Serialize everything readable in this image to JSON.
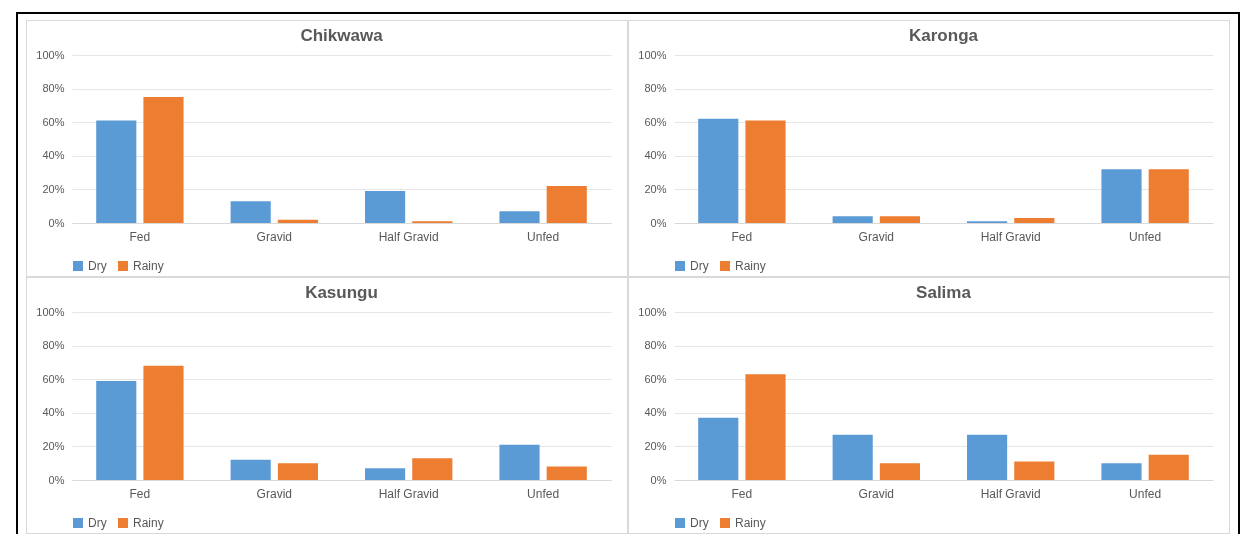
{
  "chart_data": [
    {
      "type": "bar",
      "title": "Chikwawa",
      "categories": [
        "Fed",
        "Gravid",
        "Half Gravid",
        "Unfed"
      ],
      "ylim": [
        0,
        100
      ],
      "yticks": [
        {
          "value": 0,
          "label": "0%"
        },
        {
          "value": 20,
          "label": "20%"
        },
        {
          "value": 40,
          "label": "40%"
        },
        {
          "value": 60,
          "label": "60%"
        },
        {
          "value": 80,
          "label": "80%"
        },
        {
          "value": 100,
          "label": "100%"
        }
      ],
      "grid": "y",
      "legend": "bottom",
      "series": [
        {
          "name": "Dry",
          "color": "#5b9bd5",
          "values": [
            61,
            13,
            19,
            7
          ]
        },
        {
          "name": "Rainy",
          "color": "#ed7d31",
          "values": [
            75,
            2,
            1,
            22
          ]
        }
      ]
    },
    {
      "type": "bar",
      "title": "Karonga",
      "categories": [
        "Fed",
        "Gravid",
        "Half Gravid",
        "Unfed"
      ],
      "ylim": [
        0,
        100
      ],
      "yticks": [
        {
          "value": 0,
          "label": "0%"
        },
        {
          "value": 20,
          "label": "20%"
        },
        {
          "value": 40,
          "label": "40%"
        },
        {
          "value": 60,
          "label": "60%"
        },
        {
          "value": 80,
          "label": "80%"
        },
        {
          "value": 100,
          "label": "100%"
        }
      ],
      "grid": "y",
      "legend": "bottom",
      "series": [
        {
          "name": "Dry",
          "color": "#5b9bd5",
          "values": [
            62,
            4,
            1,
            32
          ]
        },
        {
          "name": "Rainy",
          "color": "#ed7d31",
          "values": [
            61,
            4,
            3,
            32
          ]
        }
      ]
    },
    {
      "type": "bar",
      "title": "Kasungu",
      "categories": [
        "Fed",
        "Gravid",
        "Half Gravid",
        "Unfed"
      ],
      "ylim": [
        0,
        100
      ],
      "yticks": [
        {
          "value": 0,
          "label": "0%"
        },
        {
          "value": 20,
          "label": "20%"
        },
        {
          "value": 40,
          "label": "40%"
        },
        {
          "value": 60,
          "label": "60%"
        },
        {
          "value": 80,
          "label": "80%"
        },
        {
          "value": 100,
          "label": "100%"
        }
      ],
      "grid": "y",
      "legend": "bottom",
      "series": [
        {
          "name": "Dry",
          "color": "#5b9bd5",
          "values": [
            59,
            12,
            7,
            21
          ]
        },
        {
          "name": "Rainy",
          "color": "#ed7d31",
          "values": [
            68,
            10,
            13,
            8
          ]
        }
      ]
    },
    {
      "type": "bar",
      "title": "Salima",
      "categories": [
        "Fed",
        "Gravid",
        "Half Gravid",
        "Unfed"
      ],
      "ylim": [
        0,
        100
      ],
      "yticks": [
        {
          "value": 0,
          "label": "0%"
        },
        {
          "value": 20,
          "label": "20%"
        },
        {
          "value": 40,
          "label": "40%"
        },
        {
          "value": 60,
          "label": "60%"
        },
        {
          "value": 80,
          "label": "80%"
        },
        {
          "value": 100,
          "label": "100%"
        }
      ],
      "grid": "y",
      "legend": "bottom",
      "series": [
        {
          "name": "Dry",
          "color": "#5b9bd5",
          "values": [
            37,
            27,
            27,
            10
          ]
        },
        {
          "name": "Rainy",
          "color": "#ed7d31",
          "values": [
            63,
            10,
            11,
            15
          ]
        }
      ]
    }
  ]
}
